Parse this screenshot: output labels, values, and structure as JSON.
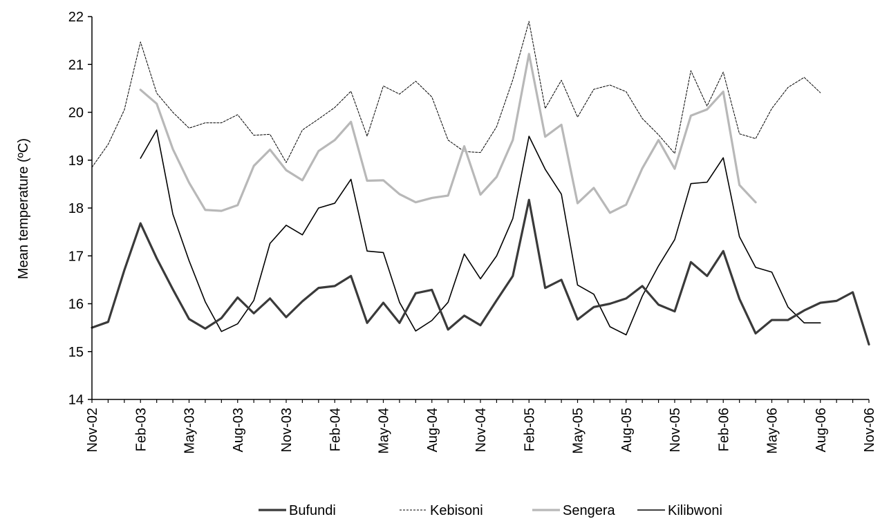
{
  "chart_data": {
    "type": "line",
    "title": "",
    "xlabel": "",
    "ylabel": "Mean temperature  (ºC)",
    "ylim": [
      14,
      22
    ],
    "yticks": [
      14,
      15,
      16,
      17,
      18,
      19,
      20,
      21,
      22
    ],
    "x": [
      "Nov-02",
      "Dec-02",
      "Jan-03",
      "Feb-03",
      "Mar-03",
      "Apr-03",
      "May-03",
      "Jun-03",
      "Jul-03",
      "Aug-03",
      "Sep-03",
      "Oct-03",
      "Nov-03",
      "Dec-03",
      "Jan-04",
      "Feb-04",
      "Mar-04",
      "Apr-04",
      "May-04",
      "Jun-04",
      "Jul-04",
      "Aug-04",
      "Sep-04",
      "Oct-04",
      "Nov-04",
      "Dec-04",
      "Jan-05",
      "Feb-05",
      "Mar-05",
      "Apr-05",
      "May-05",
      "Jun-05",
      "Jul-05",
      "Aug-05",
      "Sep-05",
      "Oct-05",
      "Nov-05",
      "Dec-05",
      "Jan-06",
      "Feb-06",
      "Mar-06",
      "Apr-06",
      "May-06",
      "Jun-06",
      "Jul-06",
      "Aug-06",
      "Sep-06",
      "Oct-06",
      "Nov-06"
    ],
    "xtick_labels": [
      "Nov-02",
      "Feb-03",
      "May-03",
      "Aug-03",
      "Nov-03",
      "Feb-04",
      "May-04",
      "Aug-04",
      "Nov-04",
      "Feb-05",
      "May-05",
      "Aug-05",
      "Nov-05",
      "Feb-06",
      "May-06",
      "Aug-06",
      "Nov-06"
    ],
    "grid": false,
    "legend_position": "bottom",
    "series": [
      {
        "name": "Bufundi",
        "color": "#3a3a3a",
        "style": "solid-thick",
        "values": [
          15.5,
          15.62,
          16.7,
          17.68,
          16.95,
          16.3,
          15.68,
          15.48,
          15.7,
          16.13,
          15.8,
          16.11,
          15.72,
          16.05,
          16.33,
          16.37,
          16.58,
          15.6,
          16.02,
          15.6,
          16.22,
          16.29,
          15.46,
          15.75,
          15.55,
          16.07,
          16.58,
          18.17,
          16.33,
          16.5,
          15.67,
          15.93,
          16.0,
          16.11,
          16.37,
          15.98,
          15.84,
          16.87,
          16.58,
          17.1,
          16.1,
          15.38,
          15.66,
          15.66,
          15.86,
          16.02,
          16.06,
          16.24,
          15.15
        ]
      },
      {
        "name": "Kebisoni",
        "color": "#000000",
        "style": "dashed",
        "values": [
          18.85,
          19.33,
          20.05,
          21.47,
          20.4,
          20.0,
          19.67,
          19.78,
          19.78,
          19.95,
          19.52,
          19.54,
          18.95,
          19.63,
          19.86,
          20.1,
          20.44,
          19.5,
          20.55,
          20.38,
          20.65,
          20.32,
          19.42,
          19.18,
          19.16,
          19.7,
          20.68,
          21.9,
          20.08,
          20.67,
          19.9,
          20.48,
          20.57,
          20.43,
          19.87,
          19.53,
          19.14,
          20.87,
          20.13,
          20.84,
          19.55,
          19.45,
          20.08,
          20.52,
          20.73,
          20.41,
          null,
          null,
          null
        ]
      },
      {
        "name": "Sengera",
        "color": "#b8b8b8",
        "style": "solid-thick",
        "values": [
          null,
          null,
          null,
          20.47,
          20.18,
          19.23,
          18.53,
          17.96,
          17.94,
          18.06,
          18.88,
          19.22,
          18.79,
          18.58,
          19.19,
          19.42,
          19.8,
          18.57,
          18.58,
          18.29,
          18.12,
          18.21,
          18.26,
          19.29,
          18.28,
          18.65,
          19.42,
          21.22,
          19.49,
          19.74,
          18.1,
          18.42,
          17.9,
          18.07,
          18.83,
          19.42,
          18.82,
          19.93,
          20.06,
          20.43,
          18.48,
          18.12,
          null,
          null,
          null,
          null,
          null,
          null,
          null
        ]
      },
      {
        "name": "Kilibwoni",
        "color": "#000000",
        "style": "solid-thin",
        "values": [
          null,
          null,
          null,
          19.04,
          19.63,
          17.87,
          16.9,
          16.04,
          15.42,
          15.58,
          16.07,
          17.26,
          17.64,
          17.44,
          18.0,
          18.1,
          18.6,
          17.1,
          17.07,
          16.03,
          15.43,
          15.65,
          16.03,
          17.04,
          16.52,
          17.0,
          17.78,
          19.5,
          18.81,
          18.29,
          16.39,
          16.2,
          15.52,
          15.35,
          16.16,
          16.79,
          17.34,
          18.51,
          18.54,
          19.05,
          17.4,
          16.76,
          16.66,
          15.93,
          15.6,
          15.6,
          null,
          null,
          null
        ]
      }
    ]
  }
}
